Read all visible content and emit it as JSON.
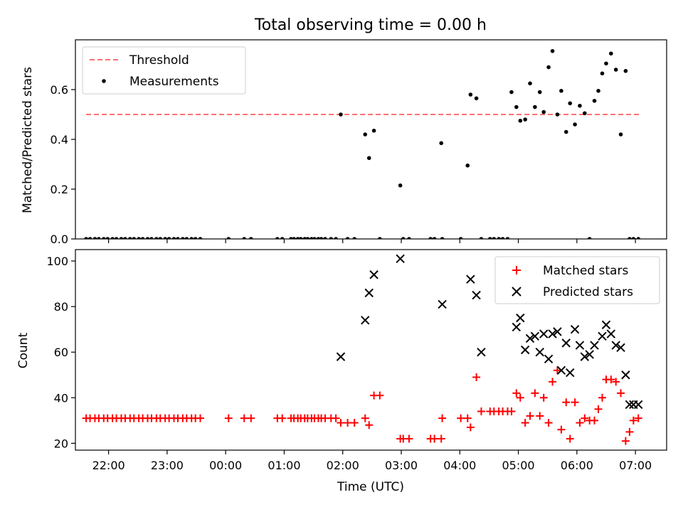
{
  "chart_data": [
    {
      "type": "scatter",
      "title": "Total observing time = 0.00 h",
      "xlabel": "",
      "ylabel": "Matched/Predicted stars",
      "xlim": [
        "21:26",
        "07:32"
      ],
      "ylim": [
        0,
        0.8
      ],
      "yticks": [
        0,
        0.2,
        0.4,
        0.6
      ],
      "ytick_labels": [
        "0.0",
        "0.2",
        "0.4",
        "0.6"
      ],
      "xticks": [
        "22:00",
        "23:00",
        "00:00",
        "01:00",
        "02:00",
        "03:00",
        "04:00",
        "05:00",
        "06:00",
        "07:00"
      ],
      "grid": false,
      "legend_position": "top-left",
      "series": [
        {
          "name": "Threshold",
          "style": "dashed-line",
          "color": "#ff7070",
          "x": [
            "21:37",
            "07:05"
          ],
          "y": [
            0.5,
            0.5
          ]
        },
        {
          "name": "Measurements",
          "style": "dot",
          "color": "#000000",
          "x": [
            "21:37",
            "21:41",
            "21:46",
            "21:50",
            "21:55",
            "21:59",
            "22:04",
            "22:08",
            "22:13",
            "22:17",
            "22:22",
            "22:26",
            "22:31",
            "22:35",
            "22:40",
            "22:44",
            "22:49",
            "22:53",
            "22:58",
            "23:02",
            "23:07",
            "23:11",
            "23:16",
            "23:20",
            "23:25",
            "23:29",
            "23:34",
            "00:03",
            "00:19",
            "00:26",
            "00:53",
            "00:58",
            "01:07",
            "01:10",
            "01:14",
            "01:17",
            "01:21",
            "01:24",
            "01:28",
            "01:31",
            "01:35",
            "01:38",
            "01:42",
            "01:48",
            "01:53",
            "01:58",
            "02:05",
            "02:12",
            "02:23",
            "02:27",
            "02:32",
            "02:38",
            "02:59",
            "03:02",
            "03:08",
            "03:30",
            "03:34",
            "03:41",
            "03:42",
            "04:01",
            "04:08",
            "04:11",
            "04:17",
            "04:22",
            "04:31",
            "04:35",
            "04:40",
            "04:44",
            "04:49",
            "04:53",
            "04:58",
            "05:02",
            "05:07",
            "05:12",
            "05:17",
            "05:22",
            "05:26",
            "05:31",
            "05:35",
            "05:40",
            "05:44",
            "05:49",
            "05:53",
            "05:58",
            "06:03",
            "06:08",
            "06:13",
            "06:18",
            "06:22",
            "06:26",
            "06:30",
            "06:35",
            "06:40",
            "06:45",
            "06:50",
            "06:54",
            "06:58",
            "07:03"
          ],
          "y": [
            0,
            0,
            0,
            0,
            0,
            0,
            0,
            0,
            0,
            0,
            0,
            0,
            0,
            0,
            0,
            0,
            0,
            0,
            0,
            0,
            0,
            0,
            0,
            0,
            0,
            0,
            0,
            0,
            0,
            0,
            0,
            0,
            0,
            0,
            0,
            0,
            0,
            0,
            0,
            0,
            0,
            0,
            0,
            0,
            0,
            0.5,
            0,
            0,
            0.42,
            0.325,
            0.435,
            0,
            0.215,
            0,
            0,
            0,
            0,
            0.385,
            0,
            0,
            0.295,
            0.58,
            0.565,
            0,
            0,
            0,
            0,
            0,
            0,
            0.59,
            0.53,
            0.475,
            0.48,
            0.625,
            0.53,
            0.59,
            0.51,
            0.69,
            0.755,
            0.5,
            0.595,
            0.43,
            0.545,
            0.46,
            0.535,
            0.505,
            0,
            0.555,
            0.595,
            0.665,
            0.705,
            0.745,
            0.68,
            0.42,
            0.675,
            0,
            0,
            0
          ]
        }
      ]
    },
    {
      "type": "scatter",
      "title": "",
      "xlabel": "Time (UTC)",
      "ylabel": "Count",
      "xlim": [
        "21:26",
        "07:32"
      ],
      "ylim": [
        17,
        105
      ],
      "yticks": [
        20,
        40,
        60,
        80,
        100
      ],
      "xticks": [
        "22:00",
        "23:00",
        "00:00",
        "01:00",
        "02:00",
        "03:00",
        "04:00",
        "05:00",
        "06:00",
        "07:00"
      ],
      "grid": false,
      "legend_position": "top-right",
      "series": [
        {
          "name": "Matched stars",
          "style": "plus",
          "color": "#ff0000",
          "x": [
            "21:37",
            "21:41",
            "21:46",
            "21:50",
            "21:55",
            "21:59",
            "22:04",
            "22:08",
            "22:13",
            "22:17",
            "22:22",
            "22:26",
            "22:31",
            "22:35",
            "22:40",
            "22:44",
            "22:49",
            "22:53",
            "22:58",
            "23:02",
            "23:07",
            "23:11",
            "23:16",
            "23:20",
            "23:25",
            "23:29",
            "23:34",
            "00:03",
            "00:19",
            "00:26",
            "00:53",
            "00:58",
            "01:07",
            "01:10",
            "01:14",
            "01:17",
            "01:21",
            "01:24",
            "01:28",
            "01:31",
            "01:35",
            "01:38",
            "01:42",
            "01:48",
            "01:53",
            "01:58",
            "02:05",
            "02:12",
            "02:23",
            "02:27",
            "02:32",
            "02:38",
            "02:59",
            "03:02",
            "03:08",
            "03:30",
            "03:34",
            "03:41",
            "03:42",
            "04:01",
            "04:08",
            "04:11",
            "04:17",
            "04:22",
            "04:31",
            "04:35",
            "04:40",
            "04:44",
            "04:49",
            "04:53",
            "04:58",
            "05:02",
            "05:07",
            "05:12",
            "05:17",
            "05:22",
            "05:26",
            "05:31",
            "05:35",
            "05:40",
            "05:44",
            "05:49",
            "05:53",
            "05:58",
            "06:03",
            "06:08",
            "06:13",
            "06:18",
            "06:22",
            "06:26",
            "06:30",
            "06:35",
            "06:40",
            "06:45",
            "06:50",
            "06:54",
            "06:58",
            "07:03"
          ],
          "y": [
            31,
            31,
            31,
            31,
            31,
            31,
            31,
            31,
            31,
            31,
            31,
            31,
            31,
            31,
            31,
            31,
            31,
            31,
            31,
            31,
            31,
            31,
            31,
            31,
            31,
            31,
            31,
            31,
            31,
            31,
            31,
            31,
            31,
            31,
            31,
            31,
            31,
            31,
            31,
            31,
            31,
            31,
            31,
            31,
            31,
            29,
            29,
            29,
            31,
            28,
            41,
            41,
            22,
            22,
            22,
            22,
            22,
            22,
            31,
            31,
            31,
            27,
            49,
            34,
            34,
            34,
            34,
            34,
            34,
            34,
            42,
            40,
            29,
            32,
            42,
            32,
            40,
            29,
            47,
            52,
            26,
            38,
            22,
            38,
            29,
            31,
            30,
            30,
            35,
            40,
            48,
            48,
            47,
            42,
            21,
            25,
            30,
            31
          ]
        },
        {
          "name": "Predicted stars",
          "style": "x",
          "color": "#000000",
          "x": [
            "01:58",
            "02:23",
            "02:27",
            "02:32",
            "02:59",
            "03:42",
            "04:11",
            "04:17",
            "04:22",
            "04:58",
            "05:02",
            "05:07",
            "05:12",
            "05:17",
            "05:22",
            "05:26",
            "05:31",
            "05:35",
            "05:40",
            "05:44",
            "05:49",
            "05:53",
            "05:58",
            "06:03",
            "06:08",
            "06:13",
            "06:18",
            "06:26",
            "06:30",
            "06:35",
            "06:40",
            "06:45",
            "06:50",
            "06:54",
            "06:58",
            "07:03"
          ],
          "y": [
            58,
            74,
            86,
            94,
            101,
            81,
            92,
            85,
            60,
            71,
            75,
            61,
            66,
            67,
            60,
            68,
            57,
            68,
            69,
            52,
            64,
            51,
            70,
            63,
            58,
            59,
            63,
            67,
            72,
            68,
            63,
            62,
            50,
            37,
            37,
            37
          ]
        }
      ]
    }
  ]
}
